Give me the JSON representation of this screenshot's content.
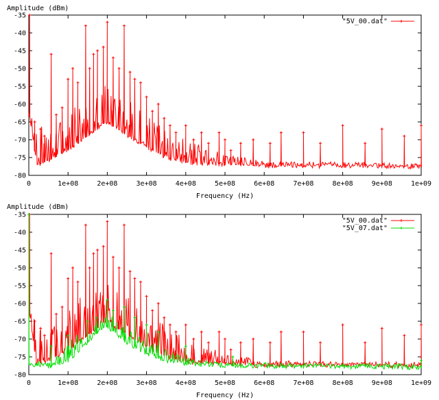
{
  "chart_data": [
    {
      "type": "line",
      "title": "",
      "xlabel": "Frequency (Hz)",
      "ylabel": "Amplitude (dBm)",
      "xlim": [
        0,
        1000000000
      ],
      "ylim": [
        -80,
        -35
      ],
      "x_ticks": [
        "0",
        "1e+08",
        "2e+08",
        "3e+08",
        "4e+08",
        "5e+08",
        "6e+08",
        "7e+08",
        "8e+08",
        "9e+08",
        "1e+09"
      ],
      "y_ticks": [
        "-35",
        "-40",
        "-45",
        "-50",
        "-55",
        "-60",
        "-65",
        "-70",
        "-75",
        "-80"
      ],
      "legend_position": "top-right",
      "grid": false,
      "series": [
        {
          "name": "\"5V_00.dat\"",
          "color": "#ff0000",
          "floor": [
            [
              0,
              -62
            ],
            [
              20000000,
              -77
            ],
            [
              50000000,
              -76
            ],
            [
              100000000,
              -73
            ],
            [
              150000000,
              -69
            ],
            [
              195000000,
              -65
            ],
            [
              240000000,
              -68
            ],
            [
              300000000,
              -72
            ],
            [
              350000000,
              -75
            ],
            [
              400000000,
              -76.5
            ],
            [
              500000000,
              -77
            ],
            [
              600000000,
              -77.5
            ],
            [
              800000000,
              -77.3
            ],
            [
              1000000000,
              -77.6
            ]
          ],
          "envelope": [
            [
              0,
              -62
            ],
            [
              50000000,
              -68
            ],
            [
              100000000,
              -62
            ],
            [
              150000000,
              -56
            ],
            [
              200000000,
              -54
            ],
            [
              250000000,
              -57
            ],
            [
              300000000,
              -62
            ],
            [
              350000000,
              -66
            ],
            [
              400000000,
              -70
            ],
            [
              450000000,
              -72
            ],
            [
              500000000,
              -74
            ],
            [
              600000000,
              -76
            ],
            [
              1000000000,
              -76.5
            ]
          ],
          "peaks": [
            [
              2000000,
              -35
            ],
            [
              15000000,
              -65
            ],
            [
              30000000,
              -67
            ],
            [
              40000000,
              -69
            ],
            [
              57000000,
              -46
            ],
            [
              70000000,
              -63
            ],
            [
              85000000,
              -61
            ],
            [
              100000000,
              -53
            ],
            [
              112000000,
              -50
            ],
            [
              125000000,
              -54
            ],
            [
              145000000,
              -38
            ],
            [
              155000000,
              -50
            ],
            [
              165000000,
              -46
            ],
            [
              175000000,
              -45
            ],
            [
              190000000,
              -44
            ],
            [
              200000000,
              -37
            ],
            [
              215000000,
              -47
            ],
            [
              230000000,
              -50
            ],
            [
              243000000,
              -38
            ],
            [
              258000000,
              -51
            ],
            [
              270000000,
              -53
            ],
            [
              285000000,
              -54
            ],
            [
              300000000,
              -58
            ],
            [
              315000000,
              -62
            ],
            [
              330000000,
              -60
            ],
            [
              345000000,
              -64
            ],
            [
              360000000,
              -66
            ],
            [
              375000000,
              -68
            ],
            [
              400000000,
              -66
            ],
            [
              420000000,
              -70
            ],
            [
              440000000,
              -68
            ],
            [
              458000000,
              -71
            ],
            [
              485000000,
              -68
            ],
            [
              500000000,
              -70
            ],
            [
              515000000,
              -73
            ],
            [
              540000000,
              -71
            ],
            [
              572000000,
              -70
            ],
            [
              615000000,
              -71
            ],
            [
              643000000,
              -68
            ],
            [
              700000000,
              -68
            ],
            [
              743000000,
              -71
            ],
            [
              800000000,
              -66
            ],
            [
              857000000,
              -71
            ],
            [
              900000000,
              -67
            ],
            [
              957000000,
              -69
            ],
            [
              1000000000,
              -66
            ]
          ]
        }
      ]
    },
    {
      "type": "line",
      "title": "",
      "xlabel": "Frequency (Hz)",
      "ylabel": "Amplitude (dBm)",
      "xlim": [
        0,
        1000000000
      ],
      "ylim": [
        -80,
        -35
      ],
      "x_ticks": [
        "0",
        "1e+08",
        "2e+08",
        "3e+08",
        "4e+08",
        "5e+08",
        "6e+08",
        "7e+08",
        "8e+08",
        "9e+08",
        "1e+09"
      ],
      "y_ticks": [
        "-35",
        "-40",
        "-45",
        "-50",
        "-55",
        "-60",
        "-65",
        "-70",
        "-75",
        "-80"
      ],
      "legend_position": "top-right",
      "grid": false,
      "series": [
        {
          "name": "\"5V_00.dat\"",
          "color": "#ff0000",
          "floor": [
            [
              0,
              -62
            ],
            [
              20000000,
              -77
            ],
            [
              50000000,
              -76
            ],
            [
              100000000,
              -73
            ],
            [
              150000000,
              -69
            ],
            [
              195000000,
              -65
            ],
            [
              240000000,
              -68
            ],
            [
              300000000,
              -72
            ],
            [
              350000000,
              -75
            ],
            [
              400000000,
              -76.5
            ],
            [
              500000000,
              -77
            ],
            [
              600000000,
              -77.5
            ],
            [
              800000000,
              -77.3
            ],
            [
              1000000000,
              -77.6
            ]
          ],
          "envelope": [
            [
              0,
              -62
            ],
            [
              50000000,
              -68
            ],
            [
              100000000,
              -62
            ],
            [
              150000000,
              -56
            ],
            [
              200000000,
              -54
            ],
            [
              250000000,
              -57
            ],
            [
              300000000,
              -62
            ],
            [
              350000000,
              -66
            ],
            [
              400000000,
              -70
            ],
            [
              450000000,
              -72
            ],
            [
              500000000,
              -74
            ],
            [
              600000000,
              -76
            ],
            [
              1000000000,
              -76.5
            ]
          ],
          "peaks": [
            [
              2000000,
              -35
            ],
            [
              15000000,
              -65
            ],
            [
              30000000,
              -67
            ],
            [
              40000000,
              -69
            ],
            [
              57000000,
              -46
            ],
            [
              70000000,
              -63
            ],
            [
              85000000,
              -61
            ],
            [
              100000000,
              -53
            ],
            [
              112000000,
              -50
            ],
            [
              125000000,
              -54
            ],
            [
              145000000,
              -38
            ],
            [
              155000000,
              -50
            ],
            [
              165000000,
              -46
            ],
            [
              175000000,
              -45
            ],
            [
              190000000,
              -44
            ],
            [
              200000000,
              -37
            ],
            [
              215000000,
              -47
            ],
            [
              230000000,
              -50
            ],
            [
              243000000,
              -38
            ],
            [
              258000000,
              -51
            ],
            [
              270000000,
              -53
            ],
            [
              285000000,
              -54
            ],
            [
              300000000,
              -58
            ],
            [
              315000000,
              -62
            ],
            [
              330000000,
              -60
            ],
            [
              345000000,
              -64
            ],
            [
              360000000,
              -66
            ],
            [
              375000000,
              -68
            ],
            [
              400000000,
              -66
            ],
            [
              420000000,
              -70
            ],
            [
              440000000,
              -68
            ],
            [
              458000000,
              -71
            ],
            [
              485000000,
              -68
            ],
            [
              500000000,
              -70
            ],
            [
              515000000,
              -73
            ],
            [
              540000000,
              -71
            ],
            [
              572000000,
              -70
            ],
            [
              615000000,
              -71
            ],
            [
              643000000,
              -68
            ],
            [
              700000000,
              -68
            ],
            [
              743000000,
              -71
            ],
            [
              800000000,
              -66
            ],
            [
              857000000,
              -71
            ],
            [
              900000000,
              -67
            ],
            [
              957000000,
              -69
            ],
            [
              1000000000,
              -66
            ]
          ]
        },
        {
          "name": "\"5V_07.dat\"",
          "color": "#00dd00",
          "floor": [
            [
              0,
              -77
            ],
            [
              50000000,
              -78
            ],
            [
              100000000,
              -76
            ],
            [
              150000000,
              -71
            ],
            [
              195000000,
              -66
            ],
            [
              250000000,
              -71
            ],
            [
              300000000,
              -74
            ],
            [
              350000000,
              -76
            ],
            [
              400000000,
              -77
            ],
            [
              500000000,
              -77.5
            ],
            [
              1000000000,
              -78
            ]
          ],
          "envelope": [
            [
              0,
              -77
            ],
            [
              50000000,
              -75
            ],
            [
              100000000,
              -71
            ],
            [
              150000000,
              -66
            ],
            [
              200000000,
              -63
            ],
            [
              250000000,
              -66
            ],
            [
              300000000,
              -70
            ],
            [
              350000000,
              -73
            ],
            [
              400000000,
              -75
            ],
            [
              500000000,
              -76.5
            ],
            [
              1000000000,
              -77
            ]
          ],
          "peaks": [
            [
              0,
              -35
            ],
            [
              57000000,
              -72
            ],
            [
              100000000,
              -69
            ],
            [
              150000000,
              -65
            ],
            [
              172000000,
              -64
            ],
            [
              200000000,
              -59
            ],
            [
              215000000,
              -62
            ],
            [
              243000000,
              -61
            ],
            [
              270000000,
              -64
            ],
            [
              300000000,
              -66
            ],
            [
              330000000,
              -68
            ],
            [
              400000000,
              -72
            ],
            [
              520000000,
              -75
            ],
            [
              1000000000,
              -76
            ]
          ]
        }
      ]
    }
  ]
}
